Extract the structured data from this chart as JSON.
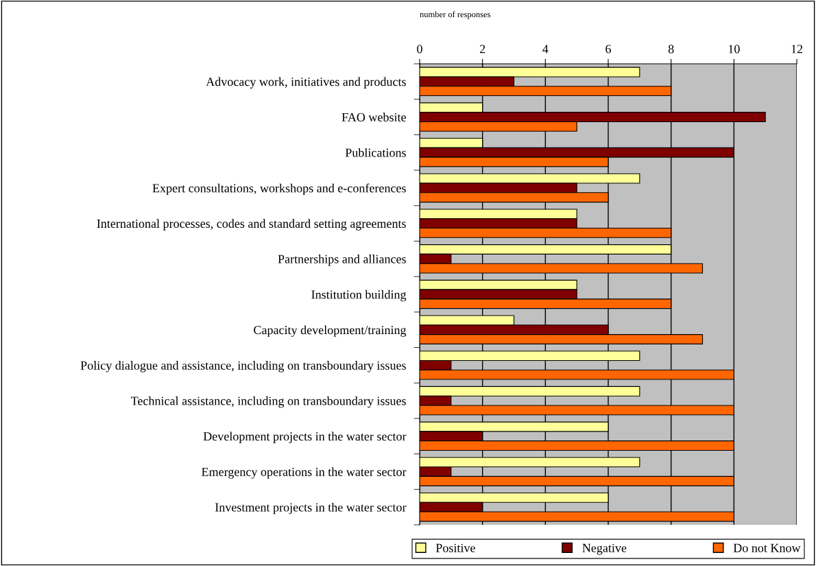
{
  "chart_data": {
    "type": "bar",
    "orientation": "horizontal",
    "xlabel": "number of responses",
    "categories": [
      "Advocacy work, initiatives and products",
      "FAO website",
      "Publications",
      "Expert consultations, workshops and e-conferences",
      "International processes, codes and standard setting agreements",
      "Partnerships and alliances",
      "Institution building",
      "Capacity development/training",
      "Policy dialogue and assistance, including on transboundary issues",
      "Technical assistance, including on transboundary issues",
      "Development projects in the water sector",
      "Emergency operations in the water sector",
      "Investment projects in the water sector"
    ],
    "series": [
      {
        "name": "Positive",
        "color": "#ffff99",
        "values": [
          7,
          2,
          2,
          7,
          5,
          8,
          5,
          3,
          7,
          7,
          6,
          7,
          6
        ]
      },
      {
        "name": "Negative",
        "color": "#800000",
        "values": [
          3,
          11,
          10,
          5,
          5,
          1,
          5,
          6,
          1,
          1,
          2,
          1,
          2
        ]
      },
      {
        "name": "Do not Know",
        "color": "#ff6600",
        "values": [
          8,
          5,
          6,
          6,
          8,
          9,
          8,
          9,
          10,
          10,
          10,
          10,
          10
        ]
      }
    ],
    "xlim": [
      0,
      12
    ],
    "xticks": [
      0,
      2,
      4,
      6,
      8,
      10,
      12
    ],
    "grid": "x",
    "legend": "bottom"
  }
}
